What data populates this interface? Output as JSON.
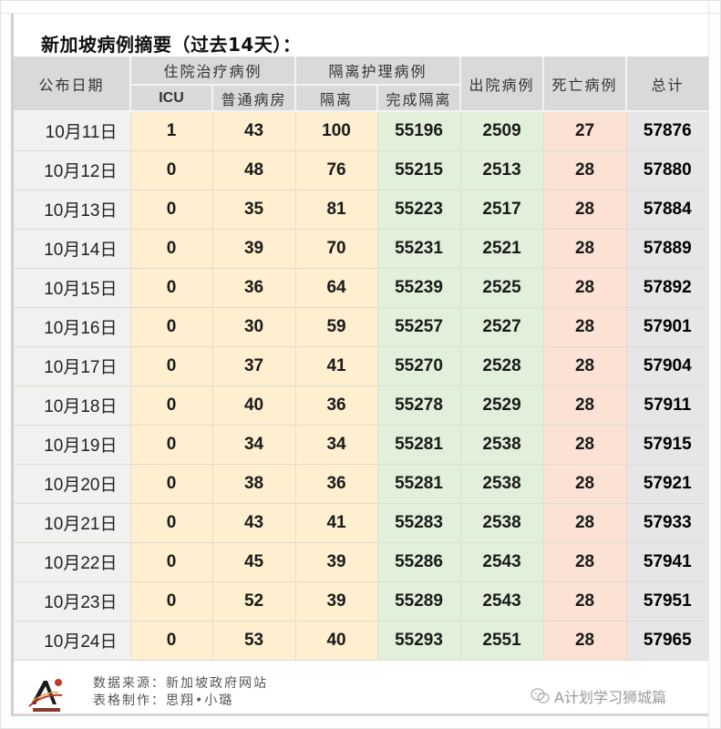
{
  "title": "新加坡病例摘要（过去14天）：",
  "table": {
    "headers": {
      "date": "公布日期",
      "hospitalized_group": "住院治疗病例",
      "icu": "ICU",
      "general_ward": "普通病房",
      "isolation_group": "隔离护理病例",
      "isolation": "隔离",
      "completed_isolation": "完成隔离",
      "discharged": "出院病例",
      "deaths": "死亡病例",
      "total": "总计"
    },
    "rows": [
      {
        "date": "10月11日",
        "icu": "1",
        "ward": "43",
        "isolation": "100",
        "completed": "55196",
        "discharged": "2509",
        "deaths": "27",
        "total": "57876"
      },
      {
        "date": "10月12日",
        "icu": "0",
        "ward": "48",
        "isolation": "76",
        "completed": "55215",
        "discharged": "2513",
        "deaths": "28",
        "total": "57880"
      },
      {
        "date": "10月13日",
        "icu": "0",
        "ward": "35",
        "isolation": "81",
        "completed": "55223",
        "discharged": "2517",
        "deaths": "28",
        "total": "57884"
      },
      {
        "date": "10月14日",
        "icu": "0",
        "ward": "39",
        "isolation": "70",
        "completed": "55231",
        "discharged": "2521",
        "deaths": "28",
        "total": "57889"
      },
      {
        "date": "10月15日",
        "icu": "0",
        "ward": "36",
        "isolation": "64",
        "completed": "55239",
        "discharged": "2525",
        "deaths": "28",
        "total": "57892"
      },
      {
        "date": "10月16日",
        "icu": "0",
        "ward": "30",
        "isolation": "59",
        "completed": "55257",
        "discharged": "2527",
        "deaths": "28",
        "total": "57901"
      },
      {
        "date": "10月17日",
        "icu": "0",
        "ward": "37",
        "isolation": "41",
        "completed": "55270",
        "discharged": "2528",
        "deaths": "28",
        "total": "57904"
      },
      {
        "date": "10月18日",
        "icu": "0",
        "ward": "40",
        "isolation": "36",
        "completed": "55278",
        "discharged": "2529",
        "deaths": "28",
        "total": "57911"
      },
      {
        "date": "10月19日",
        "icu": "0",
        "ward": "34",
        "isolation": "34",
        "completed": "55281",
        "discharged": "2538",
        "deaths": "28",
        "total": "57915"
      },
      {
        "date": "10月20日",
        "icu": "0",
        "ward": "38",
        "isolation": "36",
        "completed": "55281",
        "discharged": "2538",
        "deaths": "28",
        "total": "57921"
      },
      {
        "date": "10月21日",
        "icu": "0",
        "ward": "43",
        "isolation": "41",
        "completed": "55283",
        "discharged": "2538",
        "deaths": "28",
        "total": "57933"
      },
      {
        "date": "10月22日",
        "icu": "0",
        "ward": "45",
        "isolation": "39",
        "completed": "55286",
        "discharged": "2543",
        "deaths": "28",
        "total": "57941"
      },
      {
        "date": "10月23日",
        "icu": "0",
        "ward": "52",
        "isolation": "39",
        "completed": "55289",
        "discharged": "2543",
        "deaths": "28",
        "total": "57951"
      },
      {
        "date": "10月24日",
        "icu": "0",
        "ward": "53",
        "isolation": "40",
        "completed": "55293",
        "discharged": "2551",
        "deaths": "28",
        "total": "57965"
      }
    ]
  },
  "footer": {
    "logo_icon": "a-plan-logo-icon",
    "source_line": "数据来源：新加坡政府网站",
    "made_by_line": "表格制作：思翔•小璐",
    "watermark_icon": "wechat-icon",
    "watermark_text": "A计划学习狮城篇"
  },
  "colors": {
    "header_bg": "#d9d9d9",
    "date_bg": "#f1f1f1",
    "hospital_bg": "#fdefcf",
    "completed_discharged_bg": "#e2efda",
    "deaths_bg": "#fbe2d5",
    "total_bg": "#e6e6e6"
  }
}
